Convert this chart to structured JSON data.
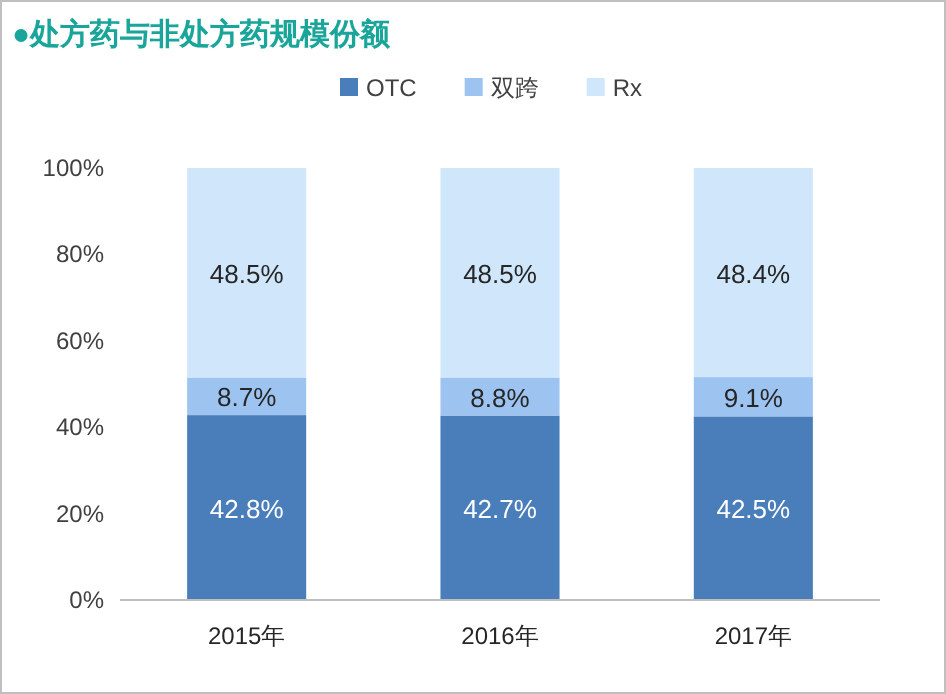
{
  "chart_data": {
    "type": "bar",
    "title": "●处方药与非处方药规模份额",
    "stacked": true,
    "legend": "top",
    "grid": false,
    "categories": [
      "2015年",
      "2016年",
      "2017年"
    ],
    "series": [
      {
        "name": "OTC",
        "color": "#4a7ebb",
        "values": [
          42.8,
          42.7,
          42.5
        ],
        "value_labels": [
          "42.8%",
          "42.7%",
          "42.5%"
        ]
      },
      {
        "name": "双跨",
        "color": "#9dc3f0",
        "values": [
          8.7,
          8.8,
          9.1
        ],
        "value_labels": [
          "8.7%",
          "8.8%",
          "9.1%"
        ]
      },
      {
        "name": "Rx",
        "color": "#cfe6fb",
        "values": [
          48.5,
          48.5,
          48.4
        ],
        "value_labels": [
          "48.5%",
          "48.5%",
          "48.4%"
        ]
      }
    ],
    "ylim": [
      0,
      100
    ],
    "yticks": [
      {
        "value": 0,
        "label": "0%"
      },
      {
        "value": 20,
        "label": "20%"
      },
      {
        "value": 40,
        "label": "40%"
      },
      {
        "value": 60,
        "label": "60%"
      },
      {
        "value": 80,
        "label": "80%"
      },
      {
        "value": 100,
        "label": "100%"
      }
    ]
  }
}
